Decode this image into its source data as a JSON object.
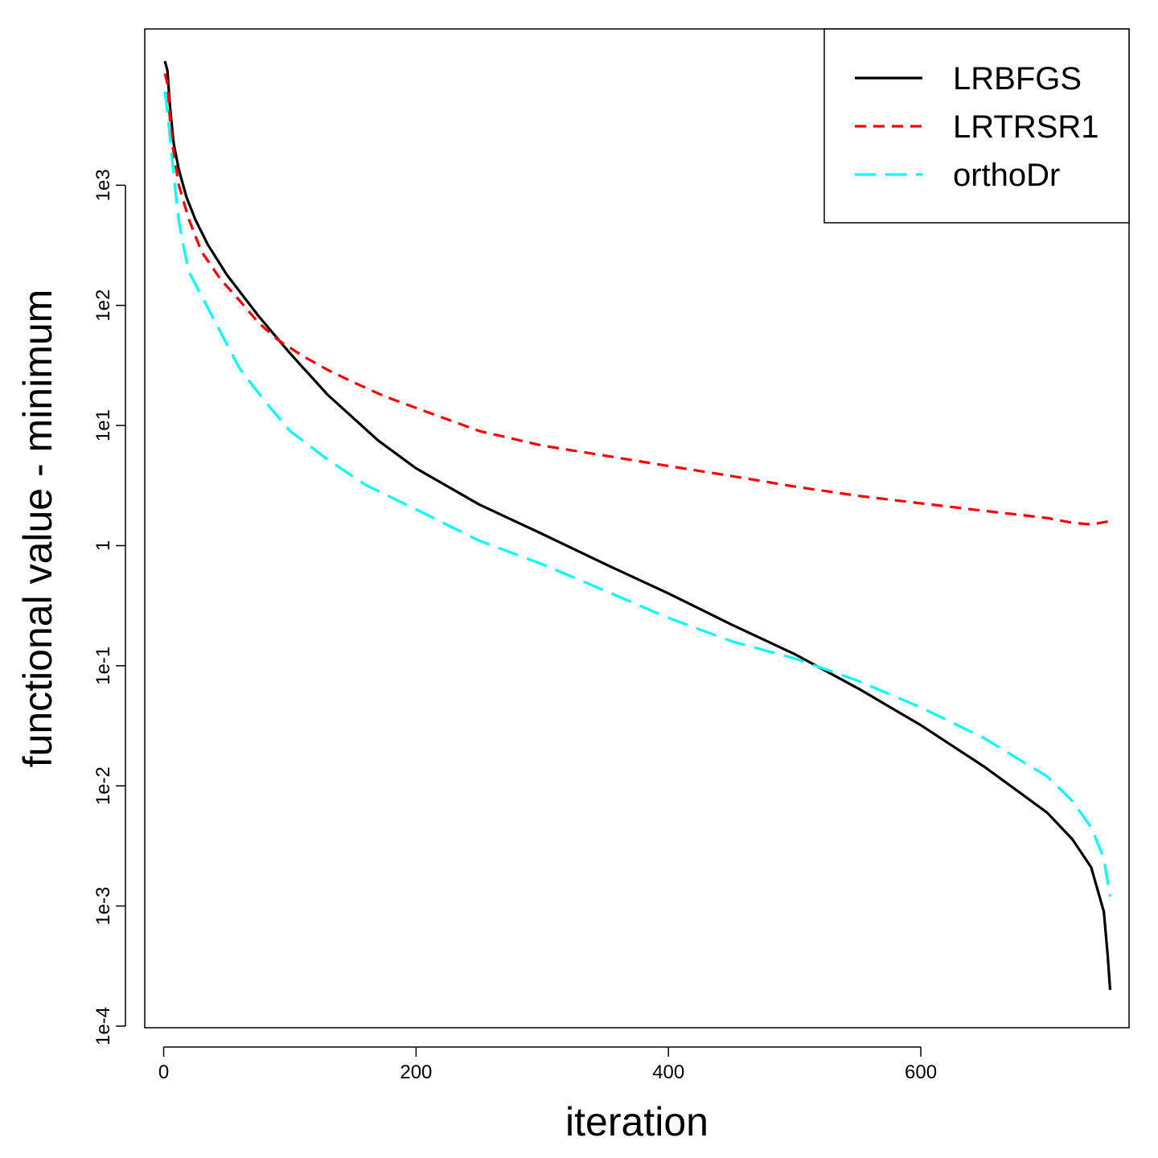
{
  "chart_data": {
    "type": "line",
    "title": "",
    "xlabel": "iteration",
    "ylabel": "functional value - minimum",
    "xlim": [
      -15,
      765
    ],
    "x_ticks": [
      0,
      200,
      400,
      600
    ],
    "x_tick_labels": [
      "0",
      "200",
      "400",
      "600"
    ],
    "yscale": "log",
    "ylim": [
      0.0001,
      20000
    ],
    "y_ticks": [
      0.0001,
      0.001,
      0.01,
      0.1,
      1,
      10,
      100,
      1000
    ],
    "y_tick_labels": [
      "1e-4",
      "1e-3",
      "1e-2",
      "1e-1",
      "1",
      "1e1",
      "1e2",
      "1e3"
    ],
    "grid": false,
    "legend_position": "top-right",
    "series": [
      {
        "name": "LRBFGS",
        "color": "#000000",
        "dash": "solid",
        "x": [
          1,
          3,
          5,
          8,
          12,
          18,
          25,
          35,
          50,
          75,
          100,
          130,
          170,
          200,
          250,
          300,
          350,
          400,
          450,
          500,
          550,
          600,
          650,
          700,
          720,
          735,
          745,
          748,
          750
        ],
        "y": [
          10800,
          9000,
          4500,
          2200,
          1350,
          800,
          520,
          320,
          180,
          82,
          40,
          18,
          7.5,
          4.4,
          2.2,
          1.25,
          0.7,
          0.4,
          0.22,
          0.125,
          0.065,
          0.032,
          0.0145,
          0.006,
          0.0036,
          0.0021,
          0.0009,
          0.0004,
          0.0002
        ]
      },
      {
        "name": "LRTRSR1",
        "color": "#ff0000",
        "dash": "dashed",
        "x": [
          1,
          3,
          5,
          8,
          12,
          20,
          30,
          45,
          60,
          75,
          90,
          110,
          130,
          150,
          175,
          200,
          250,
          300,
          350,
          400,
          450,
          500,
          550,
          600,
          650,
          700,
          720,
          735,
          750
        ],
        "y": [
          8500,
          7000,
          3500,
          1800,
          1000,
          520,
          280,
          165,
          110,
          72,
          52,
          38,
          29,
          23,
          17.5,
          14,
          9,
          6.8,
          5.6,
          4.6,
          3.8,
          3.1,
          2.6,
          2.25,
          1.95,
          1.7,
          1.55,
          1.5,
          1.6
        ]
      },
      {
        "name": "orthoDr",
        "color": "#00ffff",
        "dash": "longdash",
        "x": [
          1,
          3,
          5,
          8,
          12,
          16,
          20,
          30,
          45,
          60,
          80,
          100,
          130,
          160,
          200,
          250,
          300,
          350,
          400,
          450,
          500,
          550,
          600,
          650,
          700,
          720,
          735,
          745,
          750
        ],
        "y": [
          6000,
          4000,
          2500,
          1200,
          500,
          300,
          190,
          120,
          60,
          30,
          16,
          9,
          5.2,
          3.2,
          2,
          1.1,
          0.7,
          0.42,
          0.25,
          0.16,
          0.115,
          0.075,
          0.045,
          0.025,
          0.012,
          0.0075,
          0.0045,
          0.0025,
          0.0012
        ]
      }
    ]
  }
}
